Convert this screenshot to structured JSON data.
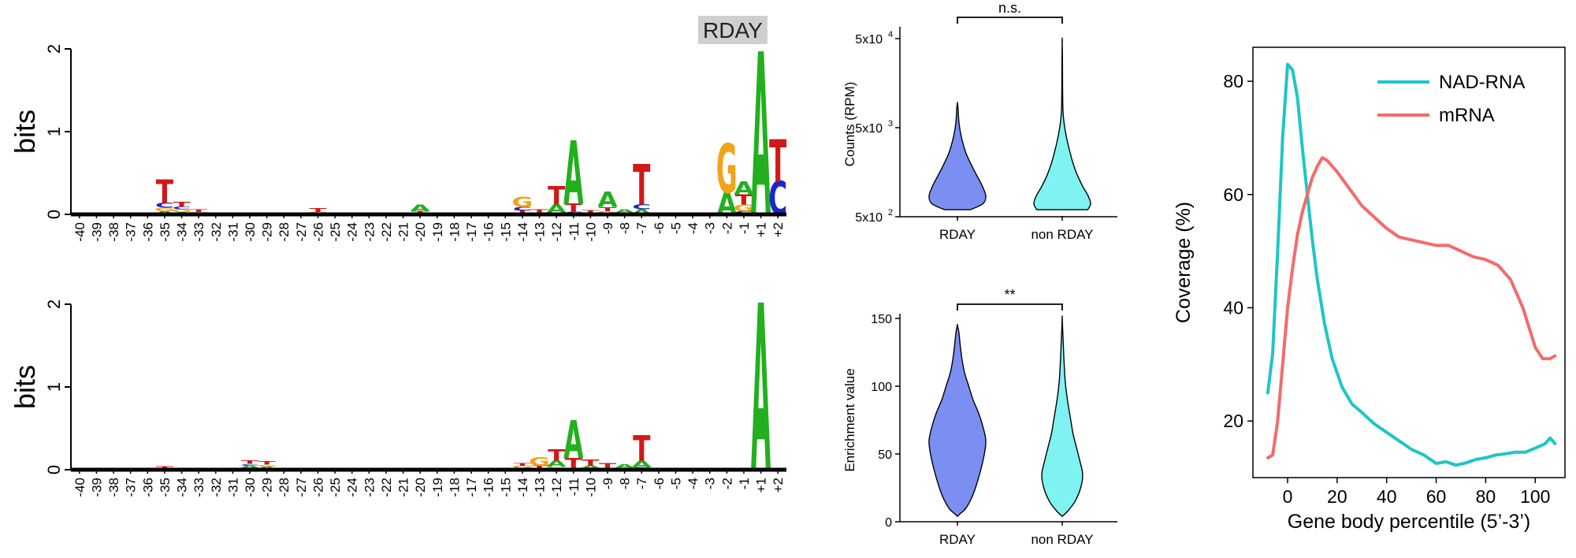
{
  "chart_data": [
    {
      "type": "sequence-logo",
      "ylabel": "bits",
      "ylim": [
        0,
        2
      ],
      "yticks": [
        "0",
        "1",
        "2"
      ],
      "badge": "RDAY",
      "positions": [
        "-40",
        "-39",
        "-38",
        "-37",
        "-36",
        "-35",
        "-34",
        "-33",
        "-32",
        "-31",
        "-30",
        "-29",
        "-28",
        "-27",
        "-26",
        "-25",
        "-24",
        "-23",
        "-22",
        "-21",
        "-20",
        "-19",
        "-18",
        "-17",
        "-16",
        "-15",
        "-14",
        "-13",
        "-12",
        "-11",
        "-10",
        "-9",
        "-8",
        "-7",
        "-6",
        "-5",
        "-4",
        "-3",
        "-2",
        "-1",
        "+1",
        "+2"
      ],
      "stacks": [
        {
          "pos": "-35",
          "letters": [
            {
              "b": "A",
              "h": 0.04
            },
            {
              "b": "G",
              "h": 0.04
            },
            {
              "b": "C",
              "h": 0.06
            },
            {
              "b": "T",
              "h": 0.28
            }
          ]
        },
        {
          "pos": "-34",
          "letters": [
            {
              "b": "A",
              "h": 0.03
            },
            {
              "b": "G",
              "h": 0.03
            },
            {
              "b": "C",
              "h": 0.03
            },
            {
              "b": "T",
              "h": 0.06
            }
          ]
        },
        {
          "pos": "-33",
          "letters": [
            {
              "b": "G",
              "h": 0.03
            },
            {
              "b": "T",
              "h": 0.03
            }
          ]
        },
        {
          "pos": "-26",
          "letters": [
            {
              "b": "G",
              "h": 0.03
            },
            {
              "b": "T",
              "h": 0.05
            }
          ]
        },
        {
          "pos": "-20",
          "letters": [
            {
              "b": "T",
              "h": 0.04
            },
            {
              "b": "A",
              "h": 0.08
            }
          ]
        },
        {
          "pos": "-14",
          "letters": [
            {
              "b": "A",
              "h": 0.02
            },
            {
              "b": "T",
              "h": 0.03
            },
            {
              "b": "C",
              "h": 0.04
            },
            {
              "b": "G",
              "h": 0.12
            }
          ]
        },
        {
          "pos": "-13",
          "letters": [
            {
              "b": "C",
              "h": 0.02
            },
            {
              "b": "T",
              "h": 0.04
            }
          ]
        },
        {
          "pos": "-12",
          "letters": [
            {
              "b": "C",
              "h": 0.02
            },
            {
              "b": "A",
              "h": 0.1
            },
            {
              "b": "T",
              "h": 0.22
            }
          ]
        },
        {
          "pos": "-11",
          "letters": [
            {
              "b": "C",
              "h": 0.03
            },
            {
              "b": "T",
              "h": 0.1
            },
            {
              "b": "A",
              "h": 0.75
            }
          ]
        },
        {
          "pos": "-10",
          "letters": [
            {
              "b": "A",
              "h": 0.02
            },
            {
              "b": "T",
              "h": 0.03
            }
          ]
        },
        {
          "pos": "-9",
          "letters": [
            {
              "b": "C",
              "h": 0.02
            },
            {
              "b": "G",
              "h": 0.02
            },
            {
              "b": "T",
              "h": 0.05
            },
            {
              "b": "A",
              "h": 0.18
            }
          ]
        },
        {
          "pos": "-8",
          "letters": [
            {
              "b": "C",
              "h": 0.02
            },
            {
              "b": "A",
              "h": 0.04
            }
          ]
        },
        {
          "pos": "-7",
          "letters": [
            {
              "b": "A",
              "h": 0.06
            },
            {
              "b": "C",
              "h": 0.06
            },
            {
              "b": "T",
              "h": 0.48
            }
          ]
        },
        {
          "pos": "-2",
          "letters": [
            {
              "b": "A",
              "h": 0.26
            },
            {
              "b": "G",
              "h": 0.58
            }
          ]
        },
        {
          "pos": "-1",
          "letters": [
            {
              "b": "C",
              "h": 0.04
            },
            {
              "b": "G",
              "h": 0.08
            },
            {
              "b": "T",
              "h": 0.12
            },
            {
              "b": "A",
              "h": 0.16
            }
          ]
        },
        {
          "pos": "+1",
          "letters": [
            {
              "b": "A",
              "h": 1.93
            }
          ]
        },
        {
          "pos": "+2",
          "letters": [
            {
              "b": "C",
              "h": 0.4
            },
            {
              "b": "T",
              "h": 0.5
            }
          ]
        }
      ]
    },
    {
      "type": "sequence-logo",
      "ylabel": "bits",
      "ylim": [
        0,
        2
      ],
      "yticks": [
        "0",
        "1",
        "2"
      ],
      "positions": [
        "-40",
        "-39",
        "-38",
        "-37",
        "-36",
        "-35",
        "-34",
        "-33",
        "-32",
        "-31",
        "-30",
        "-29",
        "-28",
        "-27",
        "-26",
        "-25",
        "-24",
        "-23",
        "-22",
        "-21",
        "-20",
        "-19",
        "-18",
        "-17",
        "-16",
        "-15",
        "-14",
        "-13",
        "-12",
        "-11",
        "-10",
        "-9",
        "-8",
        "-7",
        "-6",
        "-5",
        "-4",
        "-3",
        "-2",
        "-1",
        "+1",
        "+2"
      ],
      "stacks": [
        {
          "pos": "-35",
          "letters": [
            {
              "b": "T",
              "h": 0.04
            }
          ]
        },
        {
          "pos": "-30",
          "letters": [
            {
              "b": "G",
              "h": 0.02
            },
            {
              "b": "A",
              "h": 0.03
            },
            {
              "b": "C",
              "h": 0.02
            },
            {
              "b": "T",
              "h": 0.04
            }
          ]
        },
        {
          "pos": "-29",
          "letters": [
            {
              "b": "A",
              "h": 0.04
            },
            {
              "b": "G",
              "h": 0.02
            },
            {
              "b": "T",
              "h": 0.04
            }
          ]
        },
        {
          "pos": "-14",
          "letters": [
            {
              "b": "C",
              "h": 0.02
            },
            {
              "b": "G",
              "h": 0.03
            },
            {
              "b": "T",
              "h": 0.03
            }
          ]
        },
        {
          "pos": "-13",
          "letters": [
            {
              "b": "C",
              "h": 0.02
            },
            {
              "b": "T",
              "h": 0.03
            },
            {
              "b": "G",
              "h": 0.1
            }
          ]
        },
        {
          "pos": "-12",
          "letters": [
            {
              "b": "C",
              "h": 0.02
            },
            {
              "b": "G",
              "h": 0.02
            },
            {
              "b": "A",
              "h": 0.07
            },
            {
              "b": "T",
              "h": 0.13
            }
          ]
        },
        {
          "pos": "-11",
          "letters": [
            {
              "b": "C",
              "h": 0.02
            },
            {
              "b": "T",
              "h": 0.12
            },
            {
              "b": "A",
              "h": 0.45
            }
          ]
        },
        {
          "pos": "-10",
          "letters": [
            {
              "b": "G",
              "h": 0.02
            },
            {
              "b": "A",
              "h": 0.03
            },
            {
              "b": "T",
              "h": 0.07
            }
          ]
        },
        {
          "pos": "-9",
          "letters": [
            {
              "b": "C",
              "h": 0.02
            },
            {
              "b": "T",
              "h": 0.06
            }
          ]
        },
        {
          "pos": "-8",
          "letters": [
            {
              "b": "C",
              "h": 0.02
            },
            {
              "b": "A",
              "h": 0.05
            }
          ]
        },
        {
          "pos": "-7",
          "letters": [
            {
              "b": "C",
              "h": 0.03
            },
            {
              "b": "A",
              "h": 0.08
            },
            {
              "b": "T",
              "h": 0.3
            }
          ]
        },
        {
          "pos": "+1",
          "letters": [
            {
              "b": "A",
              "h": 1.98
            }
          ]
        }
      ]
    },
    {
      "type": "violin",
      "ylabel": "Counts (RPM)",
      "yscale": "log",
      "ylim": [
        500,
        60000
      ],
      "yticks": [
        500,
        5000,
        50000
      ],
      "ytick_bases": [
        "5x10",
        "5x10",
        "5x10"
      ],
      "ytick_exps": [
        "2",
        "3",
        "4"
      ],
      "categories": [
        "RDAY",
        "non RDAY"
      ],
      "series": [
        {
          "max": 9500,
          "profile": [
            [
              600,
              0.46
            ],
            [
              700,
              0.9
            ],
            [
              850,
              1.0
            ],
            [
              1100,
              0.88
            ],
            [
              1500,
              0.66
            ],
            [
              2000,
              0.46
            ],
            [
              2600,
              0.3
            ],
            [
              3300,
              0.2
            ],
            [
              4200,
              0.12
            ],
            [
              5500,
              0.06
            ],
            [
              7000,
              0.035
            ],
            [
              8500,
              0.02
            ],
            [
              9500,
              0
            ]
          ]
        },
        {
          "max": 48000,
          "profile": [
            [
              600,
              0.9
            ],
            [
              700,
              1.0
            ],
            [
              850,
              0.92
            ],
            [
              1100,
              0.72
            ],
            [
              1500,
              0.52
            ],
            [
              2000,
              0.38
            ],
            [
              2600,
              0.28
            ],
            [
              3300,
              0.2
            ],
            [
              4200,
              0.13
            ],
            [
              5500,
              0.07
            ],
            [
              7000,
              0.035
            ],
            [
              9000,
              0.02
            ],
            [
              15000,
              0.012
            ],
            [
              30000,
              0.008
            ],
            [
              48000,
              0
            ]
          ]
        }
      ],
      "significance": "n.s."
    },
    {
      "type": "violin",
      "ylabel": "Enrichment value",
      "ylim": [
        0,
        150
      ],
      "yticks": [
        0,
        50,
        100,
        150
      ],
      "categories": [
        "RDAY",
        "non RDAY"
      ],
      "series": [
        {
          "max": 145,
          "profile": [
            [
              4,
              0
            ],
            [
              6,
              0.1
            ],
            [
              10,
              0.3
            ],
            [
              20,
              0.55
            ],
            [
              35,
              0.78
            ],
            [
              50,
              0.95
            ],
            [
              60,
              1.0
            ],
            [
              70,
              0.9
            ],
            [
              80,
              0.75
            ],
            [
              90,
              0.55
            ],
            [
              100,
              0.4
            ],
            [
              110,
              0.25
            ],
            [
              120,
              0.16
            ],
            [
              130,
              0.1
            ],
            [
              140,
              0.05
            ],
            [
              145,
              0
            ]
          ]
        },
        {
          "max": 150,
          "profile": [
            [
              4,
              0
            ],
            [
              8,
              0.2
            ],
            [
              15,
              0.45
            ],
            [
              25,
              0.65
            ],
            [
              35,
              0.72
            ],
            [
              45,
              0.62
            ],
            [
              55,
              0.5
            ],
            [
              65,
              0.38
            ],
            [
              75,
              0.3
            ],
            [
              85,
              0.22
            ],
            [
              95,
              0.15
            ],
            [
              105,
              0.1
            ],
            [
              120,
              0.06
            ],
            [
              135,
              0.03
            ],
            [
              150,
              0
            ]
          ]
        }
      ],
      "significance": "**"
    },
    {
      "type": "line",
      "xlabel": "Gene body percentile (5’-3’)",
      "ylabel": "Coverage (%)",
      "xlim": [
        -14,
        112
      ],
      "ylim": [
        10,
        86
      ],
      "xticks": [
        0,
        20,
        40,
        60,
        80,
        100
      ],
      "yticks": [
        20,
        40,
        60,
        80
      ],
      "legend_position": "top-right",
      "series": [
        {
          "name": "NAD-RNA",
          "color": "#1ec6c6",
          "x": [
            -8,
            -6,
            -4,
            -2,
            0,
            2,
            4,
            6,
            8,
            10,
            12,
            15,
            18,
            22,
            26,
            30,
            35,
            40,
            45,
            50,
            55,
            60,
            64,
            68,
            72,
            76,
            80,
            84,
            88,
            92,
            96,
            100,
            104,
            106,
            108
          ],
          "y": [
            25,
            32,
            50,
            70,
            83,
            82,
            77,
            68,
            60,
            52,
            45,
            37,
            31,
            26,
            23,
            21.5,
            19.5,
            18,
            16.5,
            15,
            14,
            12.5,
            12.8,
            12.2,
            12.6,
            13.2,
            13.5,
            14,
            14.2,
            14.5,
            14.5,
            15.2,
            16,
            17,
            16
          ]
        },
        {
          "name": "mRNA",
          "color": "#f36b6b",
          "x": [
            -8,
            -6,
            -4,
            -2,
            0,
            2,
            4,
            6,
            8,
            10,
            12,
            14,
            16,
            20,
            25,
            30,
            35,
            40,
            45,
            50,
            55,
            60,
            65,
            70,
            75,
            80,
            85,
            90,
            95,
            100,
            103,
            106,
            108
          ],
          "y": [
            13.5,
            14,
            20,
            30,
            40,
            47,
            53,
            57,
            60,
            63,
            65,
            66.5,
            66,
            64,
            61,
            58,
            56,
            54,
            52.5,
            52,
            51.5,
            51,
            51,
            50,
            49,
            48.5,
            47.5,
            45,
            40,
            33,
            31,
            31,
            31.5
          ]
        }
      ]
    }
  ]
}
